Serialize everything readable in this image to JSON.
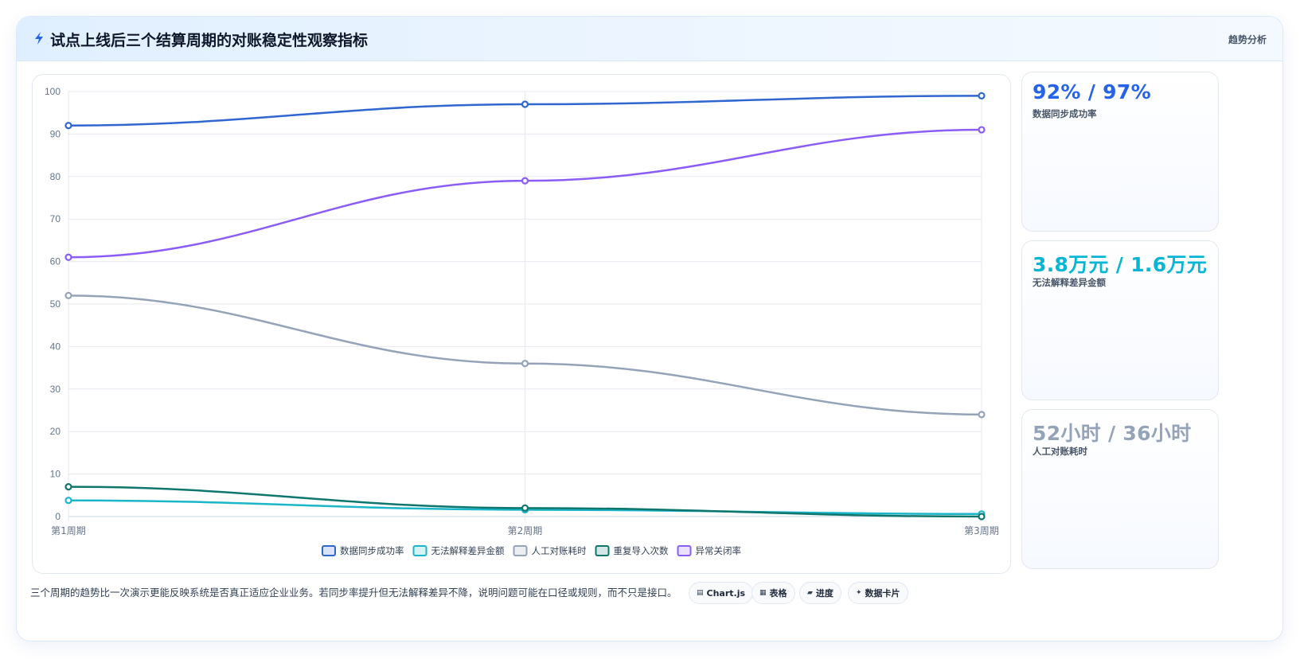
{
  "header": {
    "title": "试点上线后三个结算周期的对账稳定性观察指标",
    "tag": "趋势分析"
  },
  "chart_data": {
    "type": "line",
    "categories": [
      "第1周期",
      "第2周期",
      "第3周期"
    ],
    "ylim": [
      0,
      100
    ],
    "yticks": [
      0,
      10,
      20,
      30,
      40,
      50,
      60,
      70,
      80,
      90,
      100
    ],
    "grid": true,
    "legend_position": "bottom",
    "series": [
      {
        "name": "数据同步成功率",
        "values": [
          92,
          97,
          99
        ],
        "color": "#2f66d0"
      },
      {
        "name": "无法解释差异金额",
        "values": [
          3.8,
          1.6,
          0.6
        ],
        "color": "#1bb6c9"
      },
      {
        "name": "人工对账耗时",
        "values": [
          52,
          36,
          24
        ],
        "color": "#94a3b8"
      },
      {
        "name": "重复导入次数",
        "values": [
          7,
          2,
          0
        ],
        "color": "#0f766e"
      },
      {
        "name": "异常关闭率",
        "values": [
          61,
          79,
          91
        ],
        "color": "#8b5cf6"
      }
    ]
  },
  "side_cards": [
    {
      "value": "92% / 97%",
      "label": "数据同步成功率",
      "color": "#2563eb"
    },
    {
      "value": "3.8万元 / 1.6万元",
      "label": "无法解释差异金额",
      "color": "#06b6d4"
    },
    {
      "value": "52小时 / 36小时",
      "label": "人工对账耗时",
      "color": "#94a3b8"
    }
  ],
  "footer": {
    "note": "三个周期的趋势比一次演示更能反映系统是否真正适应企业业务。若同步率提升但无法解释差异不降，说明问题可能在口径或规则，而不只是接口。",
    "chips": [
      {
        "icon": "▤",
        "icon_name": "chart-icon",
        "label": "Chart.js"
      },
      {
        "icon": "▦",
        "icon_name": "table-icon",
        "label": "表格"
      },
      {
        "icon": "▰",
        "icon_name": "progress-icon",
        "label": "进度"
      },
      {
        "icon": "✦",
        "icon_name": "data-card-icon",
        "label": "数据卡片"
      }
    ]
  }
}
